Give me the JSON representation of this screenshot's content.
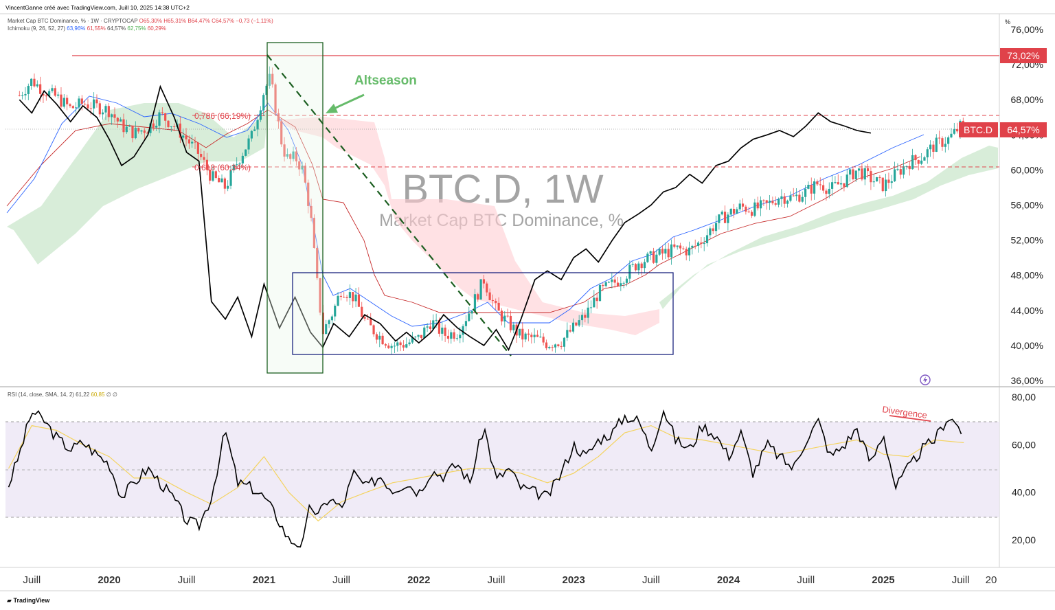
{
  "header": {
    "credit": "VincentGanne créé avec TradingView.com, Juill 10, 2025 14:38 UTC+2",
    "main_legend": {
      "name": "Market Cap BTC Dominance, % · 1W · CRYPTOCAP",
      "open": "O65,30%",
      "high": "H65,31%",
      "low": "B64,47%",
      "close": "C64,57%",
      "change": "−0,73 (−1,11%)"
    },
    "ichimoku_legend": {
      "name": "Ichimoku (9, 26, 52, 27)",
      "v1": "63,96%",
      "v2": "61,55%",
      "v3": "64,57%",
      "v4": "62,75%",
      "v5": "60,29%"
    },
    "rsi_legend": {
      "name": "RSI (14, close, SMA, 14, 2)",
      "v1": "61,22",
      "v2": "60,85",
      "v3": "∅ ∅"
    },
    "corner_unit": "%",
    "brand": "TradingView"
  },
  "colors": {
    "up": "#26a69a",
    "down": "#ef5350",
    "black_line": "#000000",
    "tenkan": "#2962ff",
    "kijun": "#b71c1c",
    "cloud_green": "#c8e6c9",
    "cloud_red": "#ffcdd2",
    "rsi_band": "#ede7f6",
    "rsi_ma": "#f4d35e",
    "accent_red": "#e0424a",
    "altseason_green": "#66bb6a"
  },
  "chart_data": [
    {
      "type": "candlestick",
      "watermark_symbol": "BTC.D, 1W",
      "watermark_name": "Market Cap BTC Dominance, %",
      "x_tick_labels": [
        "Juill",
        "2020",
        "Juill",
        "2021",
        "Juill",
        "2022",
        "Juill",
        "2023",
        "Juill",
        "2024",
        "Juill",
        "2025",
        "Juill",
        "20"
      ],
      "y_tick_labels": [
        "76,00%",
        "72,00%",
        "68,00%",
        "64,00%",
        "60,00%",
        "56,00%",
        "52,00%",
        "48,00%",
        "44,00%",
        "40,00%",
        "36,00%"
      ],
      "ylim": [
        36,
        77
      ],
      "price_series": {
        "t": [
          2019.42,
          2019.5,
          2019.58,
          2019.66,
          2019.75,
          2019.83,
          2019.92,
          2020.0,
          2020.08,
          2020.16,
          2020.25,
          2020.33,
          2020.42,
          2020.5,
          2020.58,
          2020.66,
          2020.75,
          2020.83,
          2020.92,
          2021.0,
          2021.04,
          2021.08,
          2021.12,
          2021.16,
          2021.2,
          2021.25,
          2021.3,
          2021.34,
          2021.38,
          2021.45,
          2021.5,
          2021.58,
          2021.66,
          2021.75,
          2021.83,
          2021.92,
          2022.0,
          2022.08,
          2022.16,
          2022.25,
          2022.33,
          2022.42,
          2022.5,
          2022.58,
          2022.66,
          2022.75,
          2022.83,
          2022.92,
          2023.0,
          2023.08,
          2023.16,
          2023.25,
          2023.33,
          2023.42,
          2023.5,
          2023.58,
          2023.66,
          2023.75,
          2023.83,
          2023.92,
          2024.0,
          2024.08,
          2024.16,
          2024.25,
          2024.33,
          2024.42,
          2024.5,
          2024.58,
          2024.66,
          2024.75,
          2024.83,
          2024.92,
          2025.0,
          2025.08,
          2025.16,
          2025.25,
          2025.33,
          2025.42,
          2025.5,
          2025.52
        ],
        "v": [
          68.5,
          70.2,
          69.0,
          68.3,
          67.0,
          67.6,
          67.2,
          66.8,
          65.0,
          64.2,
          64.8,
          66.3,
          65.0,
          63.5,
          61.8,
          59.2,
          58.0,
          61.0,
          63.8,
          69.0,
          70.5,
          66.5,
          62.5,
          61.0,
          61.5,
          60.0,
          55.0,
          47.5,
          41.5,
          44.0,
          46.5,
          45.5,
          42.5,
          41.0,
          40.0,
          40.2,
          40.8,
          42.8,
          41.2,
          41.5,
          44.0,
          47.5,
          44.0,
          42.5,
          41.0,
          40.8,
          40.2,
          40.5,
          42.0,
          43.5,
          46.0,
          47.0,
          48.0,
          49.5,
          50.0,
          50.5,
          51.0,
          50.8,
          52.0,
          54.0,
          55.0,
          55.8,
          55.5,
          56.0,
          57.0,
          56.8,
          57.5,
          58.5,
          57.8,
          58.8,
          60.0,
          59.0,
          58.2,
          59.5,
          60.8,
          61.5,
          62.8,
          63.5,
          65.0,
          64.57
        ]
      },
      "black_line": {
        "t": [
          2019.42,
          2019.5,
          2019.58,
          2019.66,
          2019.75,
          2019.83,
          2019.92,
          2020.0,
          2020.08,
          2020.16,
          2020.25,
          2020.33,
          2020.42,
          2020.5,
          2020.58,
          2020.66,
          2020.75,
          2020.83,
          2020.92,
          2021.0,
          2021.1,
          2021.2,
          2021.3,
          2021.38,
          2021.45,
          2021.55,
          2021.65,
          2021.75,
          2021.85,
          2021.92,
          2022.0,
          2022.08,
          2022.16,
          2022.25,
          2022.33,
          2022.42,
          2022.5,
          2022.58,
          2022.66,
          2022.75,
          2022.83,
          2022.92,
          2023.0,
          2023.08,
          2023.16,
          2023.25,
          2023.33,
          2023.42,
          2023.5,
          2023.58,
          2023.66,
          2023.75,
          2023.83,
          2023.92,
          2024.0,
          2024.08,
          2024.16,
          2024.25,
          2024.33,
          2024.42,
          2024.5,
          2024.58,
          2024.66,
          2024.75,
          2024.83,
          2024.92
        ],
        "v": [
          68.0,
          66.5,
          69.0,
          67.5,
          65.5,
          67.3,
          66.0,
          63.5,
          60.5,
          61.5,
          64.0,
          69.5,
          66.0,
          62.0,
          61.0,
          45.0,
          43.0,
          45.5,
          41.0,
          47.0,
          42.0,
          45.5,
          41.5,
          39.8,
          42.5,
          41.0,
          43.5,
          42.5,
          40.5,
          41.5,
          40.3,
          41.5,
          43.5,
          42.0,
          41.0,
          40.0,
          41.8,
          39.5,
          43.0,
          47.5,
          48.5,
          47.5,
          50.0,
          51.0,
          49.5,
          52.0,
          54.0,
          55.0,
          56.0,
          57.5,
          58.0,
          59.5,
          58.5,
          60.5,
          61.0,
          62.5,
          63.5,
          64.0,
          64.5,
          63.8,
          65.0,
          66.5,
          65.5,
          65.0,
          64.5,
          64.2
        ]
      },
      "horizontal_levels": [
        {
          "value": 73.02,
          "label": "73,02%",
          "style": "solid"
        },
        {
          "value": 66.19,
          "label": "0,786 (66,19%)",
          "style": "dashed"
        },
        {
          "value": 60.34,
          "label": "0,618 (60,34%)",
          "style": "dashed"
        }
      ],
      "current_price": {
        "value": 64.57,
        "label": "64,57%",
        "symbol": "BTC.D"
      },
      "annotations": [
        {
          "text": "Altseason",
          "color": "green"
        }
      ],
      "zones": [
        {
          "name": "altseason-rectangle",
          "x": [
            2021.0,
            2021.38
          ],
          "y": [
            37.5,
            75.5
          ]
        },
        {
          "name": "range-rectangle",
          "x": [
            2021.17,
            2023.75
          ],
          "y": [
            38.9,
            48.3
          ]
        }
      ]
    },
    {
      "type": "line",
      "name_label": "RSI (14, close, SMA, 14, 2)",
      "y_tick_labels": [
        "80,00",
        "60,00",
        "40,00",
        "20,00"
      ],
      "ylim": [
        13,
        82
      ],
      "band": [
        30,
        70
      ],
      "midline": 50,
      "annotations": [
        {
          "text": "Divergence",
          "color": "red"
        }
      ],
      "rsi": {
        "t": [
          2019.35,
          2019.42,
          2019.5,
          2019.58,
          2019.66,
          2019.75,
          2019.83,
          2019.92,
          2020.0,
          2020.08,
          2020.16,
          2020.25,
          2020.33,
          2020.42,
          2020.5,
          2020.58,
          2020.66,
          2020.75,
          2020.83,
          2020.92,
          2021.0,
          2021.08,
          2021.16,
          2021.25,
          2021.3,
          2021.35,
          2021.42,
          2021.5,
          2021.58,
          2021.66,
          2021.75,
          2021.83,
          2021.92,
          2022.0,
          2022.08,
          2022.16,
          2022.25,
          2022.33,
          2022.42,
          2022.5,
          2022.58,
          2022.66,
          2022.75,
          2022.83,
          2022.92,
          2023.0,
          2023.08,
          2023.16,
          2023.25,
          2023.33,
          2023.42,
          2023.5,
          2023.58,
          2023.66,
          2023.75,
          2023.83,
          2023.92,
          2024.0,
          2024.08,
          2024.16,
          2024.25,
          2024.33,
          2024.42,
          2024.5,
          2024.58,
          2024.66,
          2024.75,
          2024.83,
          2024.92,
          2025.0,
          2025.08,
          2025.16,
          2025.25,
          2025.33,
          2025.42,
          2025.5,
          2025.52
        ],
        "v": [
          43,
          56,
          74,
          70,
          63,
          58,
          61,
          56,
          52,
          38,
          44,
          50,
          44,
          37,
          28,
          26,
          38,
          66,
          44,
          42,
          38,
          30,
          20,
          18,
          35,
          30,
          38,
          33,
          48,
          42,
          47,
          41,
          44,
          40,
          49,
          47,
          52,
          44,
          68,
          45,
          50,
          42,
          40,
          38,
          48,
          60,
          55,
          62,
          65,
          72,
          70,
          58,
          75,
          62,
          58,
          68,
          64,
          55,
          65,
          48,
          60,
          55,
          50,
          62,
          70,
          55,
          60,
          67,
          52,
          65,
          42,
          50,
          58,
          62,
          72,
          67,
          61.2
        ]
      },
      "rsi_ma": {
        "t": [
          2019.35,
          2019.5,
          2019.66,
          2019.83,
          2020.0,
          2020.16,
          2020.33,
          2020.5,
          2020.66,
          2020.83,
          2021.0,
          2021.16,
          2021.35,
          2021.5,
          2021.66,
          2021.83,
          2022.0,
          2022.16,
          2022.33,
          2022.5,
          2022.66,
          2022.83,
          2023.0,
          2023.16,
          2023.33,
          2023.5,
          2023.66,
          2023.83,
          2024.0,
          2024.16,
          2024.33,
          2024.5,
          2024.66,
          2024.83,
          2025.0,
          2025.16,
          2025.33,
          2025.52
        ],
        "v": [
          50,
          68,
          66,
          60,
          55,
          46,
          46,
          40,
          35,
          42,
          55,
          40,
          28,
          36,
          40,
          44,
          46,
          48,
          50,
          50,
          48,
          44,
          48,
          55,
          65,
          68,
          63,
          62,
          60,
          58,
          56,
          58,
          60,
          62,
          56,
          55,
          62,
          60.85
        ]
      }
    }
  ]
}
